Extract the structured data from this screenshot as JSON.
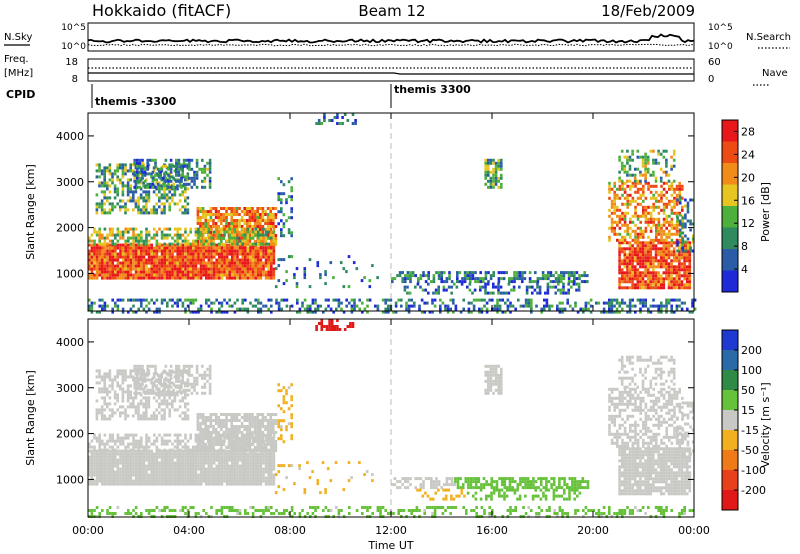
{
  "header": {
    "station": "Hokkaido (fitACF)",
    "beam": "Beam 12",
    "date": "18/Feb/2009"
  },
  "top_panels": {
    "nsky_label": "N.Sky",
    "nsky_ticks": [
      "10^5",
      "10^0"
    ],
    "nsearch_label": "N.Search",
    "nsearch_ticks": [
      "10^5",
      "10^0"
    ],
    "freq_label": "Freq.",
    "freq_unit": "[MHz]",
    "freq_ticks": [
      "18",
      "8"
    ],
    "nave_label": "Nave",
    "nave_ticks": [
      "60",
      "0"
    ],
    "cpid_label": "CPID",
    "cpid_segments": [
      {
        "label": "themis -3300",
        "start_ut": 0.0,
        "end_ut": 12.0
      },
      {
        "label": "themis 3300",
        "start_ut": 12.0,
        "end_ut": 24.0
      }
    ]
  },
  "chart_data": [
    {
      "type": "heatmap",
      "name": "power",
      "ylabel": "Slant Range [km]",
      "xlabel": "Time UT",
      "xlim": [
        0,
        24
      ],
      "ylim": [
        180,
        4500
      ],
      "x_ticks": [
        "00:00",
        "04:00",
        "08:00",
        "12:00",
        "16:00",
        "20:00",
        "00:00"
      ],
      "y_ticks": [
        1000,
        2000,
        3000,
        4000
      ],
      "colorbar_label": "Power [dB]",
      "colorbar_ticks": [
        28,
        24,
        20,
        16,
        12,
        8,
        4
      ],
      "colorbar_range": [
        0,
        30
      ],
      "colors": [
        "#1e2ad8",
        "#2a5ca8",
        "#2f8a5e",
        "#4eb03c",
        "#e7c520",
        "#f28c18",
        "#ee4a14",
        "#e8181a"
      ],
      "regions": [
        {
          "t0": 0.0,
          "t1": 7.4,
          "r0": 900,
          "r1": 1650,
          "level": 25,
          "density": 0.97
        },
        {
          "t0": 4.3,
          "t1": 7.4,
          "r0": 1600,
          "r1": 2450,
          "level": 21,
          "density": 0.85
        },
        {
          "t0": 0.0,
          "t1": 7.4,
          "r0": 1650,
          "r1": 2000,
          "level": 15,
          "density": 0.55
        },
        {
          "t0": 0.3,
          "t1": 4.0,
          "r0": 2300,
          "r1": 3400,
          "level": 11,
          "density": 0.55
        },
        {
          "t0": 1.8,
          "t1": 4.8,
          "r0": 2900,
          "r1": 3500,
          "level": 9,
          "density": 0.5
        },
        {
          "t0": 7.4,
          "t1": 11.5,
          "r0": 700,
          "r1": 1400,
          "level": 6,
          "density": 0.13
        },
        {
          "t0": 7.5,
          "t1": 8.1,
          "r0": 1800,
          "r1": 3100,
          "level": 7,
          "density": 0.3
        },
        {
          "t0": 12.0,
          "t1": 19.8,
          "r0": 800,
          "r1": 1050,
          "level": 8,
          "density": 0.6
        },
        {
          "t0": 12.5,
          "t1": 19.5,
          "r0": 550,
          "r1": 800,
          "level": 6,
          "density": 0.35
        },
        {
          "t0": 0.0,
          "t1": 24.0,
          "r0": 180,
          "r1": 450,
          "level": 7,
          "density": 0.4
        },
        {
          "t0": 15.7,
          "t1": 16.4,
          "r0": 2900,
          "r1": 3500,
          "level": 12,
          "density": 0.8
        },
        {
          "t0": 21.0,
          "t1": 23.8,
          "r0": 700,
          "r1": 1700,
          "level": 25,
          "density": 0.9
        },
        {
          "t0": 20.6,
          "t1": 23.5,
          "r0": 1700,
          "r1": 3000,
          "level": 21,
          "density": 0.55
        },
        {
          "t0": 21.0,
          "t1": 23.2,
          "r0": 3000,
          "r1": 3700,
          "level": 13,
          "density": 0.4
        },
        {
          "t0": 23.3,
          "t1": 24.0,
          "r0": 1500,
          "r1": 2700,
          "level": 9,
          "density": 0.4
        },
        {
          "t0": 9.0,
          "t1": 10.6,
          "r0": 4300,
          "r1": 4500,
          "level": 5,
          "density": 0.35
        }
      ]
    },
    {
      "type": "heatmap",
      "name": "velocity",
      "ylabel": "Slant Range [km]",
      "xlabel": "Time UT",
      "xlim": [
        0,
        24
      ],
      "ylim": [
        180,
        4500
      ],
      "x_ticks": [
        "00:00",
        "04:00",
        "08:00",
        "12:00",
        "16:00",
        "20:00",
        "00:00"
      ],
      "y_ticks": [
        1000,
        2000,
        3000,
        4000
      ],
      "colorbar_label": "Velocity [m s⁻¹]",
      "colorbar_ticks": [
        "200",
        "100",
        "50",
        "15",
        "-15",
        "-50",
        "-100",
        "-200"
      ],
      "colors": [
        "#1e3ad0",
        "#2a6aa8",
        "#2e8a44",
        "#66c23a",
        "#c8c8c4",
        "#f0b020",
        "#f07a18",
        "#e8401a",
        "#e01818"
      ],
      "regions": [
        {
          "t0": 0.0,
          "t1": 7.4,
          "r0": 900,
          "r1": 1650,
          "vel": 0,
          "density": 0.97
        },
        {
          "t0": 4.3,
          "t1": 7.4,
          "r0": 1600,
          "r1": 2450,
          "vel": 0,
          "density": 0.85
        },
        {
          "t0": 0.0,
          "t1": 7.4,
          "r0": 1650,
          "r1": 2000,
          "vel": 0,
          "density": 0.55
        },
        {
          "t0": 0.3,
          "t1": 4.0,
          "r0": 2300,
          "r1": 3400,
          "vel": 0,
          "density": 0.55
        },
        {
          "t0": 1.8,
          "t1": 4.8,
          "r0": 2900,
          "r1": 3500,
          "vel": 0,
          "density": 0.5
        },
        {
          "t0": 7.4,
          "t1": 11.5,
          "r0": 700,
          "r1": 1400,
          "vel": -20,
          "density": 0.1
        },
        {
          "t0": 7.5,
          "t1": 8.1,
          "r0": 1800,
          "r1": 3100,
          "vel": -20,
          "density": 0.3
        },
        {
          "t0": 14.5,
          "t1": 19.8,
          "r0": 800,
          "r1": 1050,
          "vel": 40,
          "density": 0.7
        },
        {
          "t0": 12.0,
          "t1": 14.5,
          "r0": 800,
          "r1": 1050,
          "vel": 0,
          "density": 0.5
        },
        {
          "t0": 13.0,
          "t1": 15.0,
          "r0": 550,
          "r1": 800,
          "vel": -40,
          "density": 0.35
        },
        {
          "t0": 15.0,
          "t1": 19.5,
          "r0": 550,
          "r1": 800,
          "vel": 30,
          "density": 0.35
        },
        {
          "t0": 0.0,
          "t1": 24.0,
          "r0": 180,
          "r1": 420,
          "vel": 20,
          "density": 0.35
        },
        {
          "t0": 15.7,
          "t1": 16.4,
          "r0": 2900,
          "r1": 3500,
          "vel": 0,
          "density": 0.8
        },
        {
          "t0": 21.0,
          "t1": 23.8,
          "r0": 700,
          "r1": 1700,
          "vel": 0,
          "density": 0.9
        },
        {
          "t0": 20.6,
          "t1": 23.5,
          "r0": 1700,
          "r1": 3000,
          "vel": 0,
          "density": 0.55
        },
        {
          "t0": 21.0,
          "t1": 23.2,
          "r0": 3000,
          "r1": 3700,
          "vel": 0,
          "density": 0.4
        },
        {
          "t0": 23.3,
          "t1": 24.0,
          "r0": 1500,
          "r1": 2700,
          "vel": 0,
          "density": 0.4
        },
        {
          "t0": 9.0,
          "t1": 10.6,
          "r0": 4300,
          "r1": 4500,
          "vel": -250,
          "density": 0.4
        }
      ]
    }
  ]
}
